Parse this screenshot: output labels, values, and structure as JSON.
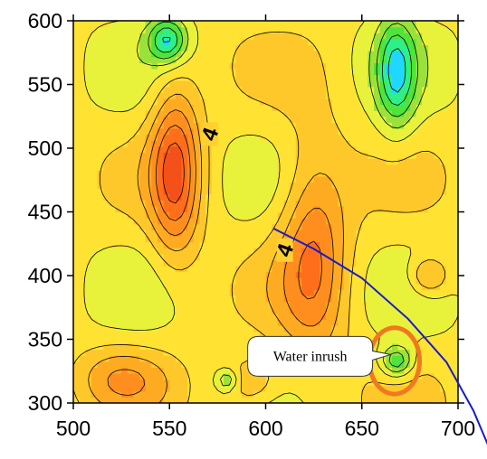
{
  "chart_data": {
    "type": "contour",
    "x_axis": {
      "range": [
        500,
        700
      ],
      "tick_labels": [
        "500",
        "550",
        "600",
        "650",
        "700"
      ],
      "ticks": [
        500,
        550,
        600,
        650,
        700
      ]
    },
    "y_axis": {
      "range": [
        300,
        600
      ],
      "tick_labels": [
        "300",
        "350",
        "400",
        "450",
        "500",
        "550",
        "600"
      ],
      "ticks": [
        300,
        350,
        400,
        450,
        500,
        550,
        600
      ]
    },
    "contour_labels": [
      {
        "text": "4",
        "x": 571,
        "y": 511
      },
      {
        "text": "4",
        "x": 610,
        "y": 420
      }
    ],
    "field_features": [
      {
        "kind": "high",
        "x": 553,
        "y": 483,
        "radius": [
          13,
          70
        ],
        "peak": 9.5
      },
      {
        "kind": "high",
        "x": 625,
        "y": 420,
        "radius": [
          18,
          90
        ],
        "peak": 8.4
      },
      {
        "kind": "high",
        "x": 525,
        "y": 320,
        "radius": [
          25,
          25
        ],
        "peak": 7.0
      },
      {
        "kind": "high",
        "x": 592,
        "y": 316,
        "radius": [
          15,
          20
        ],
        "peak": 7.0
      },
      {
        "kind": "high",
        "x": 685,
        "y": 400,
        "radius": [
          10,
          15
        ],
        "peak": 7.5
      },
      {
        "kind": "low",
        "x": 549,
        "y": 585,
        "radius": [
          10,
          18
        ],
        "peak": 0.5
      },
      {
        "kind": "low",
        "x": 668,
        "y": 560,
        "radius": [
          10,
          45
        ],
        "peak": 0.9
      },
      {
        "kind": "low",
        "x": 668,
        "y": 333,
        "radius": [
          8,
          12
        ],
        "peak": 1.3
      },
      {
        "kind": "low",
        "x": 580,
        "y": 318,
        "radius": [
          6,
          9
        ],
        "peak": 2.2
      }
    ],
    "color_scale": [
      "#1fd7ff",
      "#2ef08a",
      "#4ee43a",
      "#9ae23a",
      "#e8f23a",
      "#ffe232",
      "#ffc82a",
      "#ffab22",
      "#ff8e1e",
      "#ff6e1a",
      "#f4501a"
    ],
    "blue_line": [
      [
        604,
        437
      ],
      [
        625,
        421
      ],
      [
        650,
        398
      ],
      [
        674,
        366
      ],
      [
        694,
        332
      ],
      [
        708,
        294
      ],
      [
        717,
        262
      ]
    ],
    "water_inrush_circle": {
      "x": 667,
      "y": 333,
      "radius": [
        13,
        26
      ],
      "color": "#f07820"
    },
    "callout": {
      "text": "Water inrush",
      "anchor": [
        665,
        338
      ]
    },
    "grid": false,
    "legend": "none"
  }
}
